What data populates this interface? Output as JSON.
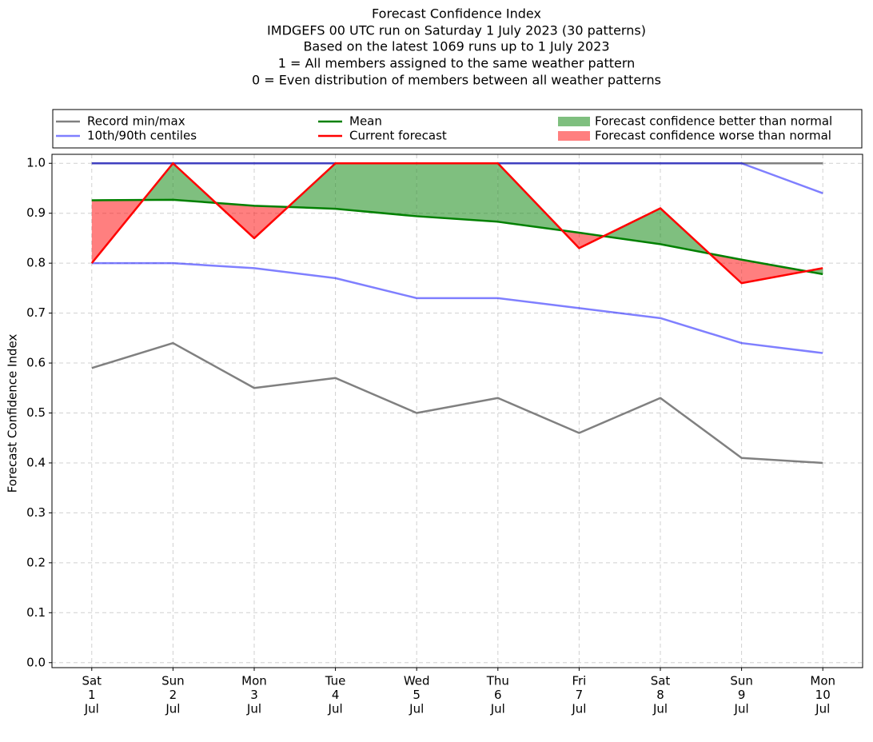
{
  "chart_data": {
    "type": "line",
    "title": "Forecast Confidence Index",
    "subtitle": [
      "IMDGEFS 00 UTC run on Saturday 1 July 2023 (30 patterns)",
      "Based on the latest 1069 runs up to 1 July 2023",
      "1 = All members assigned to the same weather pattern",
      "0 = Even distribution of members between all weather patterns"
    ],
    "ylabel": "Forecast Confidence Index",
    "categories": [
      [
        "Sat",
        "1",
        "Jul"
      ],
      [
        "Sun",
        "2",
        "Jul"
      ],
      [
        "Mon",
        "3",
        "Jul"
      ],
      [
        "Tue",
        "4",
        "Jul"
      ],
      [
        "Wed",
        "5",
        "Jul"
      ],
      [
        "Thu",
        "6",
        "Jul"
      ],
      [
        "Fri",
        "7",
        "Jul"
      ],
      [
        "Sat",
        "8",
        "Jul"
      ],
      [
        "Sun",
        "9",
        "Jul"
      ],
      [
        "Mon",
        "10",
        "Jul"
      ]
    ],
    "ylim": [
      -0.01,
      1.018
    ],
    "yticks": [
      {
        "value": 0,
        "label": "0.0"
      },
      0.1,
      0.2,
      0.3,
      0.4,
      0.5,
      0.6,
      0.7,
      0.8,
      0.9,
      {
        "value": 1,
        "label": "1.0"
      }
    ],
    "grid": true,
    "bands": [
      {
        "name": "Record min/max",
        "color": "#808080",
        "alpha": 1,
        "lower": [
          0.59,
          0.64,
          0.55,
          0.57,
          0.5,
          0.53,
          0.46,
          0.53,
          0.41,
          0.4
        ],
        "upper": [
          1,
          1,
          1,
          1,
          1,
          1,
          1,
          1,
          1,
          1
        ]
      },
      {
        "name": "10th/90th centiles",
        "color": "#0000ff",
        "alpha": 0.5,
        "lower": [
          0.8,
          0.8,
          0.79,
          0.77,
          0.73,
          0.73,
          0.71,
          0.69,
          0.64,
          0.62
        ],
        "upper": [
          1,
          1,
          1,
          1,
          1,
          1,
          1,
          1,
          1,
          0.94
        ]
      }
    ],
    "series": [
      {
        "name": "Mean",
        "color": "#008000",
        "values": [
          0.926,
          0.927,
          0.915,
          0.909,
          0.894,
          0.883,
          0.861,
          0.838,
          0.807,
          0.778
        ]
      },
      {
        "name": "Current forecast",
        "color": "#ff0000",
        "values": [
          0.8,
          1.0,
          0.85,
          1.0,
          1.0,
          1.0,
          0.83,
          0.91,
          0.76,
          0.79
        ]
      }
    ],
    "fills": [
      {
        "name": "Forecast confidence better than normal",
        "color": "#008000",
        "alpha": 0.5
      },
      {
        "name": "Forecast confidence worse than normal",
        "color": "#ff0000",
        "alpha": 0.5
      }
    ]
  }
}
